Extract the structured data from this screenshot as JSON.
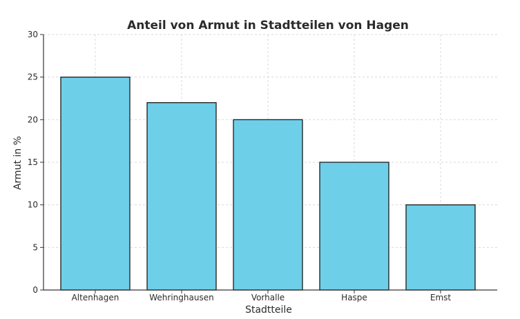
{
  "chart_data": {
    "type": "bar",
    "title": "Anteil von Armut in Stadtteilen von Hagen",
    "xlabel": "Stadtteile",
    "ylabel": "Armut in %",
    "categories": [
      "Altenhagen",
      "Wehringhausen",
      "Vorhalle",
      "Haspe",
      "Emst"
    ],
    "values": [
      25,
      22,
      20,
      15,
      10
    ],
    "ylim": [
      0,
      30
    ],
    "yticks": [
      0,
      5,
      10,
      15,
      20,
      25,
      30
    ],
    "grid": true,
    "bar_color": "#6ecfe9",
    "edge_color": "#1a1a1a"
  }
}
